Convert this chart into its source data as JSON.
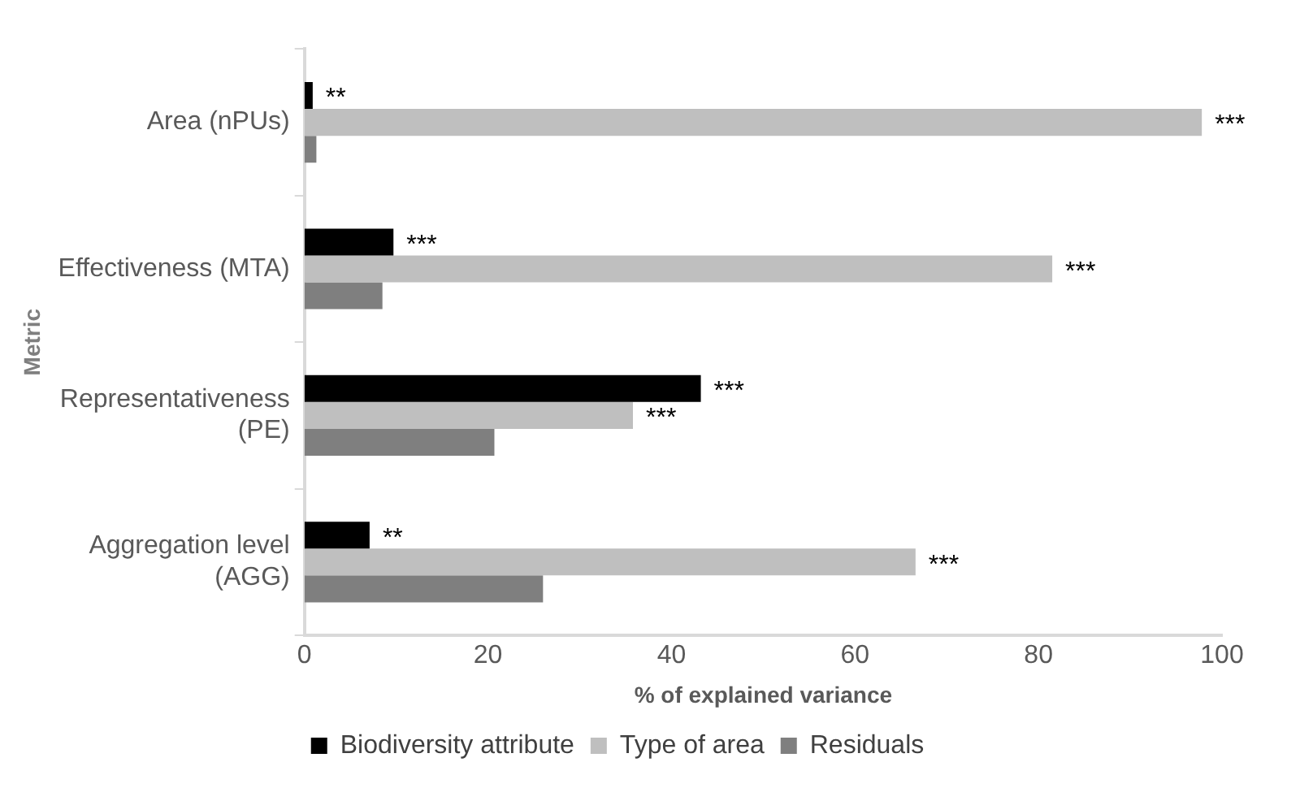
{
  "chart_data": {
    "type": "bar",
    "orientation": "horizontal",
    "xlabel": "% of explained variance",
    "ylabel": "Metric",
    "categories": [
      "Area (nPUs)",
      "Effectiveness (MTA)",
      "Representativeness (PE)",
      "Aggregation level (AGG)"
    ],
    "series": [
      {
        "name": "Biodiversity attribute",
        "color": "#000000",
        "values": [
          0.9,
          9.7,
          43.2,
          7.1
        ],
        "value_labels": [
          "**",
          "***",
          "***",
          "**"
        ]
      },
      {
        "name": "Type of area",
        "color": "#bfbfbf",
        "values": [
          97.8,
          81.5,
          35.8,
          66.6
        ],
        "value_labels": [
          "***",
          "***",
          "***",
          "***"
        ]
      },
      {
        "name": "Residuals",
        "color": "#7f7f7f",
        "values": [
          1.3,
          8.5,
          20.7,
          26.0
        ],
        "value_labels": [
          null,
          null,
          null,
          null
        ]
      }
    ],
    "xlim": [
      0,
      100
    ],
    "xticks": [
      0,
      20,
      40,
      60,
      80,
      100
    ],
    "grid": false,
    "legend": "bottom"
  }
}
